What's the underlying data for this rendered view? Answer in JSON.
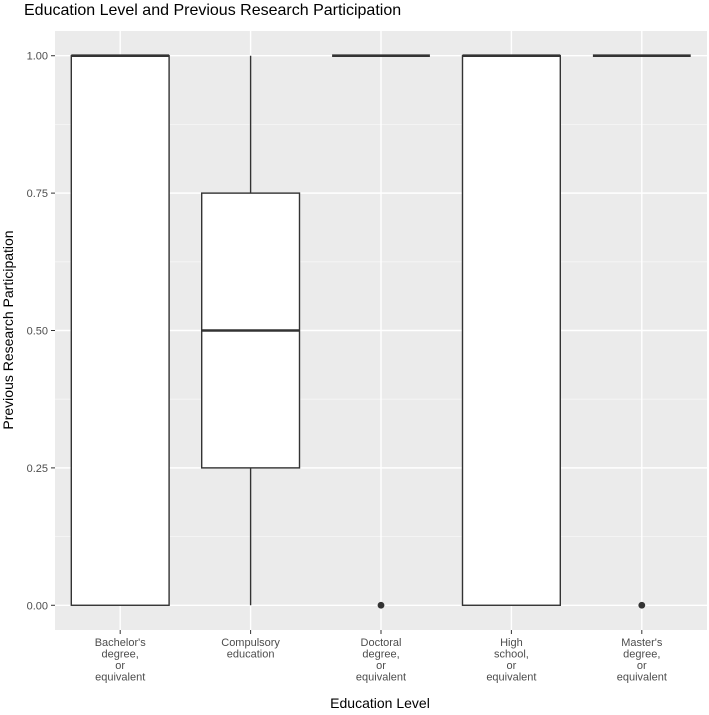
{
  "chart_data": {
    "type": "boxplot",
    "title": "Education Level and Previous Research Participation",
    "xlabel": "Education Level",
    "ylabel": "Previous Research Participation",
    "ylim": [
      -0.045,
      1.045
    ],
    "y_ticks": [
      "0.00",
      "0.25",
      "0.50",
      "0.75",
      "1.00"
    ],
    "y_tick_values": [
      0,
      0.25,
      0.5,
      0.75,
      1
    ],
    "grid": true,
    "colors": {
      "panel_background": "#ebebeb",
      "grid_major": "#ffffff",
      "grid_minor": "#f5f5f5",
      "box_fill": "#ffffff",
      "box_stroke": "#333333",
      "outlier": "#333333",
      "tick_label": "#4d4d4d"
    },
    "categories": [
      {
        "label_lines": [
          "Bachelor's",
          "degree,",
          "or",
          "equivalent"
        ],
        "min": 0,
        "q1": 0,
        "median": 1,
        "q3": 1,
        "max": 1,
        "outliers": []
      },
      {
        "label_lines": [
          "Compulsory",
          "education"
        ],
        "min": 0,
        "q1": 0.25,
        "median": 0.5,
        "q3": 0.75,
        "max": 1,
        "outliers": []
      },
      {
        "label_lines": [
          "Doctoral",
          "degree,",
          "or",
          "equivalent"
        ],
        "min": 1,
        "q1": 1,
        "median": 1,
        "q3": 1,
        "max": 1,
        "outliers": [
          0
        ]
      },
      {
        "label_lines": [
          "High",
          "school,",
          "or",
          "equivalent"
        ],
        "min": 0,
        "q1": 0,
        "median": 1,
        "q3": 1,
        "max": 1,
        "outliers": []
      },
      {
        "label_lines": [
          "Master's",
          "degree,",
          "or",
          "equivalent"
        ],
        "min": 1,
        "q1": 1,
        "median": 1,
        "q3": 1,
        "max": 1,
        "outliers": [
          0
        ]
      }
    ]
  }
}
